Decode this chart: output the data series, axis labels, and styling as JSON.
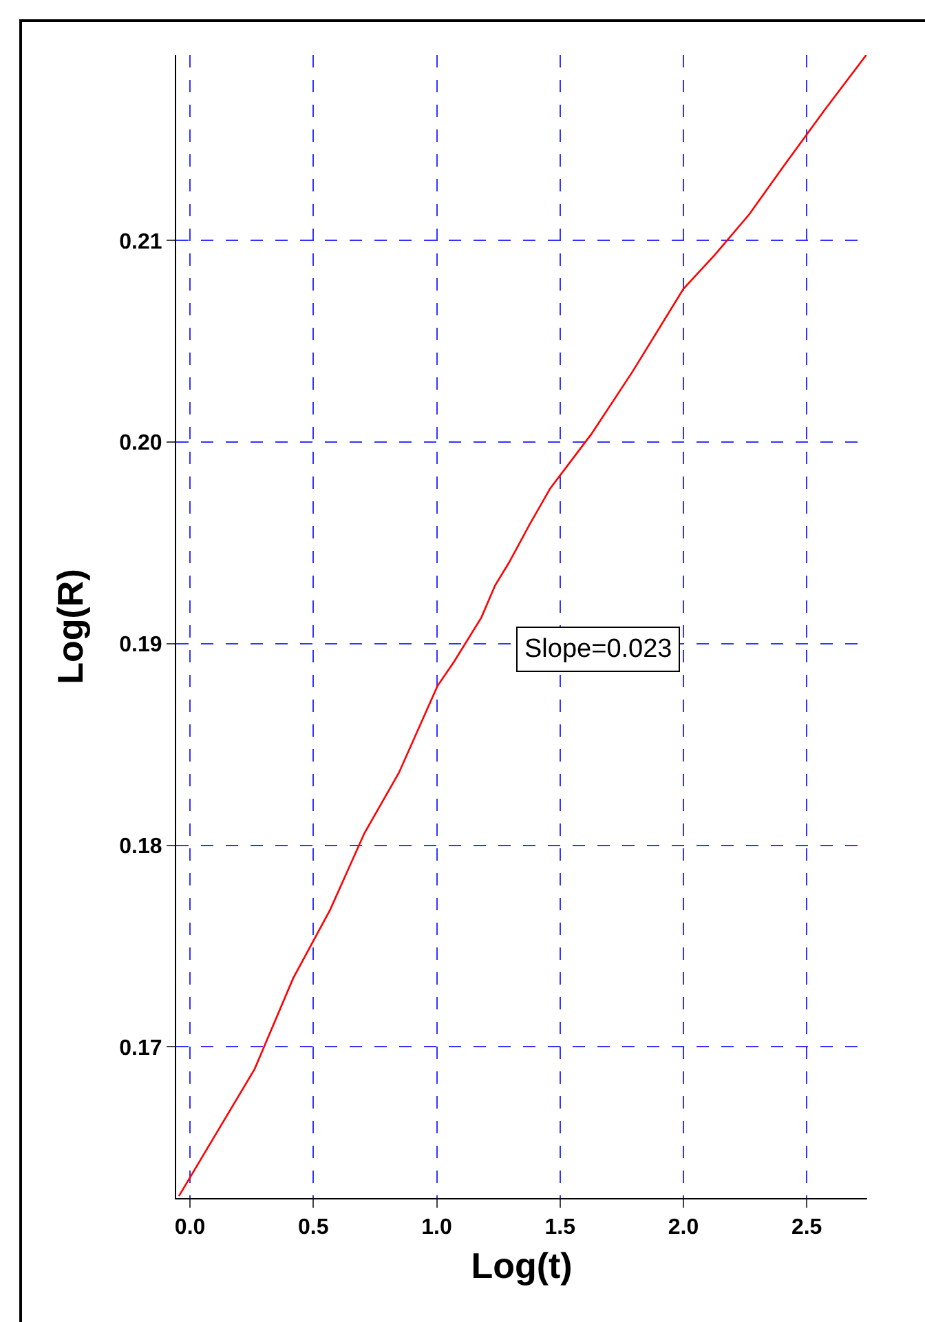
{
  "chart_data": {
    "type": "line",
    "xlabel": "Log(t)",
    "ylabel": "Log(R)",
    "x": [
      -0.045,
      0.262,
      0.418,
      0.568,
      0.707,
      0.847,
      1.003,
      1.07,
      1.181,
      1.237,
      1.292,
      1.376,
      1.46,
      1.627,
      1.794,
      2.0,
      2.128,
      2.267,
      2.407,
      2.574,
      2.741
    ],
    "series": [
      {
        "color": "#ff0000",
        "values": [
          0.1626,
          0.1689,
          0.1734,
          0.1768,
          0.1806,
          0.1836,
          0.1879,
          0.1891,
          0.1913,
          0.1929,
          0.194,
          0.1959,
          0.1977,
          0.2004,
          0.2035,
          0.2076,
          0.2093,
          0.2113,
          0.2137,
          0.2165,
          0.2192
        ]
      }
    ],
    "xlim": [
      -0.056,
      2.745
    ],
    "ylim": [
      0.1625,
      0.2192
    ],
    "xticks": [
      {
        "value": 0,
        "label": "0.0"
      },
      0.5,
      {
        "value": 1,
        "label": "1.0"
      },
      1.5,
      {
        "value": 2,
        "label": "2.0"
      },
      2.5
    ],
    "yticks": [
      0.17,
      0.18,
      0.19,
      {
        "value": 0.2,
        "label": "0.20"
      },
      0.21
    ],
    "grid": true,
    "marker": "none",
    "line_style": "solid",
    "annotations": [
      "Slope=0.023"
    ]
  }
}
